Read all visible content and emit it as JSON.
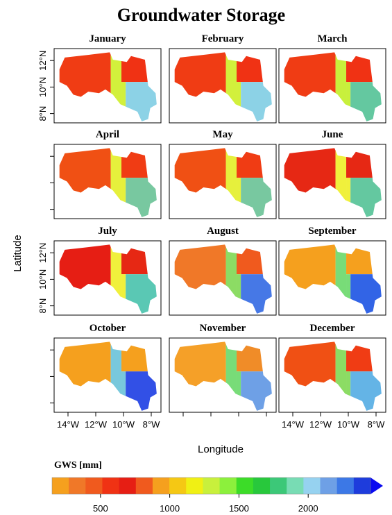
{
  "chart_data": {
    "type": "map",
    "title": "Groundwater Storage",
    "x_label": "Longitude",
    "y_label": "Latitude",
    "xlim": [
      -15,
      -7.3
    ],
    "ylim": [
      7.3,
      12.9
    ],
    "xticks": [
      {
        "value": -14,
        "label": "14°W"
      },
      {
        "value": -12,
        "label": "12°W"
      },
      {
        "value": -10,
        "label": "10°W"
      },
      {
        "value": -8,
        "label": "8°W"
      }
    ],
    "yticks": [
      {
        "value": 8,
        "label": "8°N"
      },
      {
        "value": 10,
        "label": "10°N"
      },
      {
        "value": 12,
        "label": "12°N"
      }
    ],
    "panels": [
      {
        "title": "January",
        "colors": [
          "#f03c14",
          "#d2f03c",
          "#f03214",
          "#8cd2e6"
        ]
      },
      {
        "title": "February",
        "colors": [
          "#f03c14",
          "#d2f03c",
          "#f03214",
          "#8cd2e6"
        ]
      },
      {
        "title": "March",
        "colors": [
          "#f03c14",
          "#c8f03c",
          "#f03214",
          "#64c8a0"
        ]
      },
      {
        "title": "April",
        "colors": [
          "#f05014",
          "#e6f03c",
          "#f03c14",
          "#78c8a0"
        ]
      },
      {
        "title": "May",
        "colors": [
          "#f05014",
          "#e6f03c",
          "#f03c14",
          "#78c8a0"
        ]
      },
      {
        "title": "June",
        "colors": [
          "#e62814",
          "#f0f03c",
          "#e62814",
          "#64c8a0"
        ]
      },
      {
        "title": "July",
        "colors": [
          "#e61e14",
          "#f0f03c",
          "#e62814",
          "#5ac8b4"
        ]
      },
      {
        "title": "August",
        "colors": [
          "#f07828",
          "#8cdc64",
          "#f05a1e",
          "#4678e6"
        ]
      },
      {
        "title": "September",
        "colors": [
          "#f5a01e",
          "#78dc78",
          "#f5a01e",
          "#3264e6"
        ]
      },
      {
        "title": "October",
        "colors": [
          "#f5a01e",
          "#78c8dc",
          "#f5a01e",
          "#3250e6"
        ]
      },
      {
        "title": "November",
        "colors": [
          "#f5a028",
          "#78dc78",
          "#f08c28",
          "#6ea0e6"
        ]
      },
      {
        "title": "December",
        "colors": [
          "#f05014",
          "#8cdc64",
          "#f03c14",
          "#64b4e6"
        ]
      }
    ],
    "colorbar": {
      "label": "GWS [mm]",
      "lim": [
        150,
        2450
      ],
      "ticks": [
        500,
        1000,
        1500,
        2000
      ],
      "colors": [
        "#f5a01e",
        "#f07828",
        "#f05a1e",
        "#f03214",
        "#e61e14",
        "#f05a1e",
        "#f5a01e",
        "#f5c814",
        "#f0f014",
        "#c8f03c",
        "#8cf03c",
        "#3cdc28",
        "#28c83c",
        "#3cc878",
        "#78dcb4",
        "#96d2f0",
        "#6ea0e6",
        "#3c78e6",
        "#1e3cdc",
        "#0a0af0"
      ]
    }
  }
}
